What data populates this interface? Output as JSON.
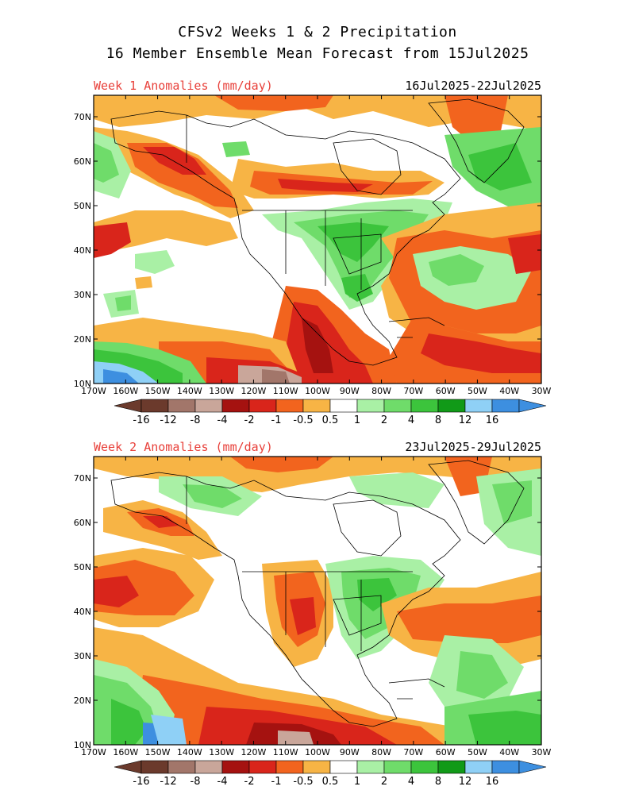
{
  "header": {
    "line1": "CFSv2 Weeks 1 & 2 Precipitation",
    "line2": "16 Member Ensemble Mean Forecast from 15Jul2025"
  },
  "panels": [
    {
      "label": "Week 1 Anomalies (mm/day)",
      "dates": "16Jul2025-22Jul2025"
    },
    {
      "label": "Week 2 Anomalies (mm/day)",
      "dates": "23Jul2025-29Jul2025"
    }
  ],
  "axes": {
    "lat_labels": [
      "70N",
      "60N",
      "50N",
      "40N",
      "30N",
      "20N",
      "10N"
    ],
    "lon_labels": [
      "170W",
      "160W",
      "150W",
      "140W",
      "130W",
      "120W",
      "110W",
      "100W",
      "90W",
      "80W",
      "70W",
      "60W",
      "50W",
      "40W",
      "30W"
    ]
  },
  "colorbar": {
    "labels": [
      "-16",
      "-12",
      "-8",
      "-4",
      "-2",
      "-1",
      "-0.5",
      "0.5",
      "1",
      "2",
      "4",
      "8",
      "12",
      "16"
    ],
    "colors": [
      "#6b3a2c",
      "#a2766a",
      "#c9a69a",
      "#a51210",
      "#d9251b",
      "#f2641e",
      "#f7b445",
      "#ffffff",
      "#a9f0a5",
      "#6fdc6a",
      "#3cc43c",
      "#119a18",
      "#8fd0f6",
      "#3d8fe0"
    ]
  }
}
